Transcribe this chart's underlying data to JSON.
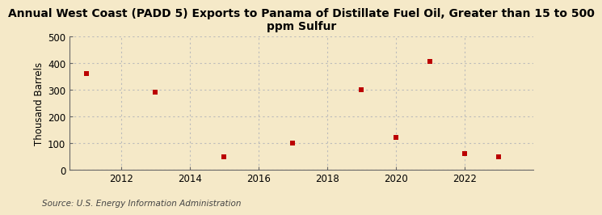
{
  "title": "Annual West Coast (PADD 5) Exports to Panama of Distillate Fuel Oil, Greater than 15 to 500\nppm Sulfur",
  "ylabel": "Thousand Barrels",
  "source": "Source: U.S. Energy Information Administration",
  "background_color": "#f5e9c8",
  "plot_background_color": "#f5e9c8",
  "marker_color": "#bb0000",
  "marker": "s",
  "marker_size": 4,
  "x_values": [
    2011,
    2013,
    2015,
    2017,
    2019,
    2020,
    2021,
    2022,
    2023
  ],
  "y_values": [
    360,
    290,
    50,
    100,
    300,
    120,
    405,
    60,
    50
  ],
  "xlim": [
    2010.5,
    2024
  ],
  "ylim": [
    0,
    500
  ],
  "yticks": [
    0,
    100,
    200,
    300,
    400,
    500
  ],
  "xticks": [
    2012,
    2014,
    2016,
    2018,
    2020,
    2022
  ],
  "grid_color": "#bbbbbb",
  "grid_style": ":",
  "title_fontsize": 10,
  "axis_fontsize": 8.5,
  "ylabel_fontsize": 8.5,
  "source_fontsize": 7.5
}
